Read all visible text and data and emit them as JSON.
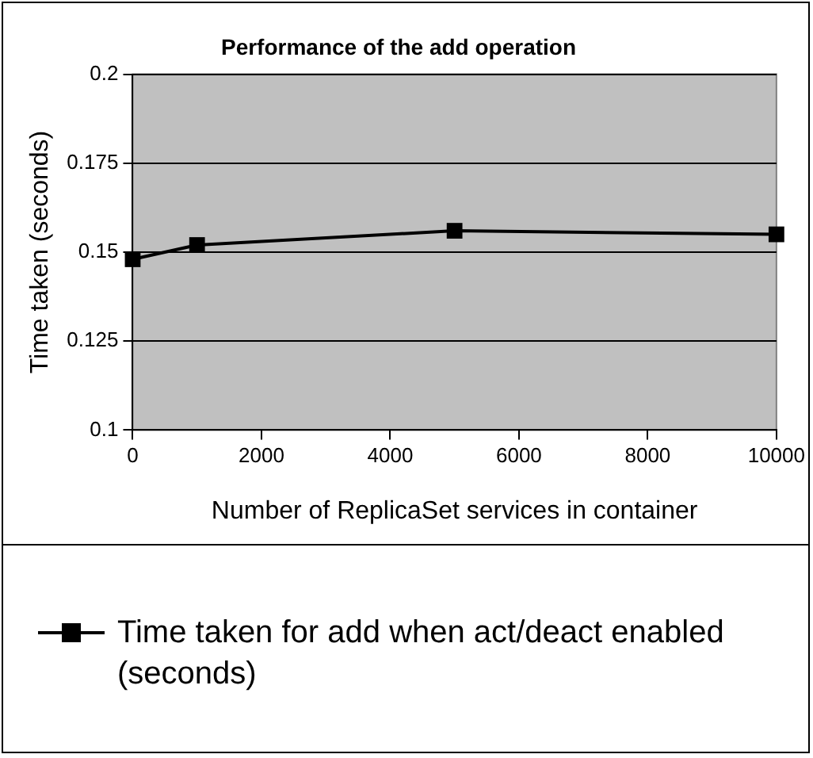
{
  "chart_data": {
    "type": "line",
    "title": "Performance of the add operation",
    "xlabel": "Number of ReplicaSet services in container",
    "ylabel": "Time taken (seconds)",
    "x": [
      0,
      1000,
      5000,
      10000
    ],
    "series": [
      {
        "name": "Time taken for add when act/deact enabled (seconds)",
        "color": "#000000",
        "values": [
          0.148,
          0.152,
          0.156,
          0.155
        ]
      }
    ],
    "xlim": [
      0,
      10000
    ],
    "xticks": [
      0,
      2000,
      4000,
      6000,
      8000,
      10000
    ],
    "ylim": [
      0.1,
      0.2
    ],
    "yticks": [
      0.1,
      0.125,
      0.15,
      0.175,
      0.2
    ],
    "grid": "y",
    "legend": "bottom",
    "marker": "square",
    "line_style": "solid"
  }
}
